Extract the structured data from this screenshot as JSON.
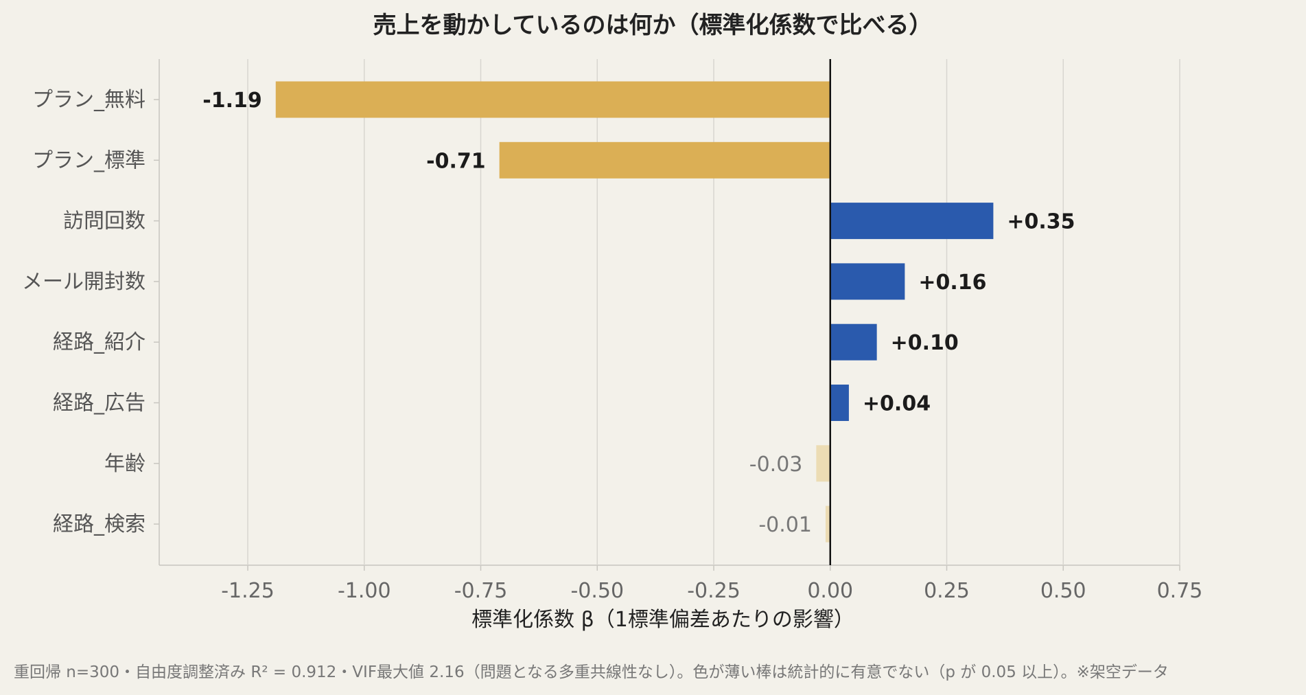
{
  "chart_data": {
    "type": "bar",
    "orientation": "horizontal",
    "title": "売上を動かしているのは何か（標準化係数で比べる）",
    "xlabel": "標準化係数 β（1標準偏差あたりの影響）",
    "ylabel": "",
    "xlim": [
      -1.44,
      0.75
    ],
    "xticks": [
      -1.25,
      -1.0,
      -0.75,
      -0.5,
      -0.25,
      0.0,
      0.25,
      0.5,
      0.75
    ],
    "xtick_labels": [
      "-1.25",
      "-1.00",
      "-0.75",
      "-0.50",
      "-0.25",
      "0.00",
      "0.25",
      "0.50",
      "0.75"
    ],
    "grid": "vertical",
    "categories": [
      "プラン_無料",
      "プラン_標準",
      "訪問回数",
      "メール開封数",
      "経路_紹介",
      "経路_広告",
      "年齢",
      "経路_検索"
    ],
    "values": [
      -1.19,
      -0.71,
      0.35,
      0.16,
      0.1,
      0.04,
      -0.03,
      -0.01
    ],
    "value_labels": [
      "-1.19",
      "-0.71",
      "+0.35",
      "+0.16",
      "+0.10",
      "+0.04",
      "-0.03",
      "-0.01"
    ],
    "significant": [
      true,
      true,
      true,
      true,
      true,
      true,
      false,
      false
    ],
    "colors": {
      "negative": "#dbaf55",
      "negative_faded": "#ecdcb4",
      "positive": "#2a5aad",
      "positive_faded": "#b8c8e6",
      "background": "#f3f1ea",
      "grid": "#d8d6d0",
      "zero_line": "#111111"
    },
    "footnote": "重回帰 n=300・自由度調整済み R² = 0.912・VIF最大値 2.16（問題となる多重共線性なし）。色が薄い棒は統計的に有意でない（p が 0.05 以上）。※架空データ"
  }
}
